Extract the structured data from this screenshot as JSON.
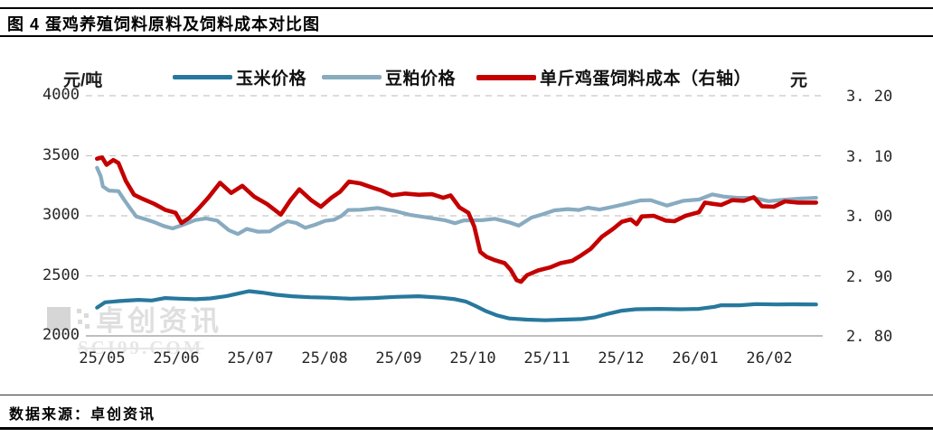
{
  "page": {
    "title": "图 4 蛋鸡养殖饲料原料及饲料成本对比图",
    "footer": "数据来源：卓创资讯",
    "watermark": {
      "name": "卓创资讯",
      "site": "SCI99.COM"
    }
  },
  "chart_data": {
    "type": "line",
    "title": "图 4 蛋鸡养殖饲料原料及饲料成本对比图",
    "grid": "dashed-horizontal",
    "legend_position": "top",
    "left_axis": {
      "label": "元/吨",
      "ticks": [
        "4000",
        "3500",
        "3000",
        "2500",
        "2000"
      ],
      "range": [
        2000,
        4000
      ]
    },
    "right_axis": {
      "label": "元",
      "ticks": [
        "3. 20",
        "3. 10",
        "3. 00",
        "2. 90",
        "2. 80"
      ],
      "range": [
        2.8,
        3.2
      ]
    },
    "x_axis": {
      "ticks": [
        "25/05",
        "25/06",
        "25/07",
        "25/08",
        "25/09",
        "25/10",
        "25/11",
        "25/12",
        "26/01",
        "26/02"
      ],
      "unit": "months, x value 0 = tick 25/05"
    },
    "colors": {
      "corn": "#27789d",
      "soybean_meal": "#88abc0",
      "feed_cost": "#c40000",
      "gridline": "#c6c6c6"
    },
    "series": [
      {
        "name": "玉米价格",
        "axis": "left",
        "color": "#27789d",
        "x": [
          -0.07,
          0.04,
          0.24,
          0.49,
          0.67,
          0.85,
          1.04,
          1.26,
          1.46,
          1.67,
          1.83,
          1.98,
          2.16,
          2.35,
          2.56,
          2.8,
          3.05,
          3.35,
          3.66,
          3.96,
          4.27,
          4.57,
          4.76,
          4.91,
          5.04,
          5.18,
          5.33,
          5.49,
          5.73,
          5.98,
          6.22,
          6.46,
          6.65,
          6.83,
          7.01,
          7.2,
          7.5,
          7.8,
          8.05,
          8.26,
          8.35,
          8.6,
          8.82,
          9.09,
          9.33,
          9.63
        ],
        "values": [
          2235,
          2280,
          2290,
          2300,
          2295,
          2315,
          2310,
          2305,
          2312,
          2330,
          2352,
          2372,
          2360,
          2342,
          2330,
          2322,
          2318,
          2310,
          2315,
          2325,
          2330,
          2318,
          2305,
          2285,
          2248,
          2205,
          2170,
          2145,
          2135,
          2130,
          2135,
          2140,
          2155,
          2185,
          2210,
          2222,
          2225,
          2222,
          2225,
          2242,
          2255,
          2255,
          2265,
          2262,
          2263,
          2262
        ]
      },
      {
        "name": "豆粕价格",
        "axis": "left",
        "color": "#88abc0",
        "x": [
          -0.07,
          -0.02,
          0.01,
          0.09,
          0.22,
          0.3,
          0.38,
          0.46,
          0.59,
          0.71,
          0.83,
          0.95,
          1.07,
          1.26,
          1.4,
          1.55,
          1.71,
          1.83,
          1.95,
          2.1,
          2.26,
          2.38,
          2.5,
          2.62,
          2.74,
          2.87,
          3.01,
          3.13,
          3.23,
          3.32,
          3.48,
          3.72,
          3.93,
          4.15,
          4.43,
          4.63,
          4.76,
          4.88,
          5.12,
          5.3,
          5.49,
          5.62,
          5.79,
          5.94,
          6.1,
          6.28,
          6.43,
          6.55,
          6.71,
          6.89,
          7.07,
          7.26,
          7.4,
          7.62,
          7.84,
          8.05,
          8.23,
          8.38,
          8.57,
          8.78,
          8.99,
          9.18,
          9.39,
          9.63
        ],
        "values": [
          3400,
          3330,
          3245,
          3210,
          3205,
          3130,
          3060,
          2995,
          2970,
          2945,
          2915,
          2895,
          2920,
          2965,
          2978,
          2960,
          2880,
          2848,
          2890,
          2868,
          2870,
          2915,
          2955,
          2940,
          2900,
          2925,
          2958,
          2968,
          3000,
          3048,
          3050,
          3065,
          3042,
          3008,
          2982,
          2962,
          2938,
          2962,
          2963,
          2975,
          2945,
          2918,
          2985,
          3012,
          3045,
          3056,
          3048,
          3068,
          3052,
          3075,
          3100,
          3128,
          3130,
          3085,
          3125,
          3135,
          3178,
          3160,
          3150,
          3150,
          3122,
          3132,
          3142,
          3150
        ]
      },
      {
        "name": "单斤鸡蛋饲料成本（右轴）",
        "axis": "right",
        "color": "#c40000",
        "x": [
          -0.07,
          0.0,
          0.06,
          0.15,
          0.22,
          0.32,
          0.43,
          0.55,
          0.7,
          0.85,
          0.99,
          1.07,
          1.18,
          1.3,
          1.43,
          1.59,
          1.74,
          1.89,
          2.05,
          2.22,
          2.41,
          2.54,
          2.66,
          2.82,
          2.95,
          3.09,
          3.21,
          3.33,
          3.48,
          3.62,
          3.77,
          3.91,
          4.09,
          4.27,
          4.45,
          4.6,
          4.7,
          4.82,
          4.94,
          5.02,
          5.1,
          5.18,
          5.3,
          5.43,
          5.51,
          5.59,
          5.65,
          5.73,
          5.88,
          6.04,
          6.18,
          6.34,
          6.46,
          6.59,
          6.74,
          6.89,
          7.01,
          7.13,
          7.21,
          7.28,
          7.44,
          7.6,
          7.72,
          7.87,
          8.05,
          8.13,
          8.23,
          8.35,
          8.5,
          8.66,
          8.79,
          8.9,
          9.06,
          9.21,
          9.39,
          9.63
        ],
        "values": [
          3.095,
          3.097,
          3.085,
          3.093,
          3.088,
          3.058,
          3.035,
          3.028,
          3.02,
          3.01,
          3.005,
          2.988,
          2.997,
          3.012,
          3.03,
          3.055,
          3.038,
          3.05,
          3.032,
          3.02,
          3.002,
          3.026,
          3.044,
          3.026,
          3.015,
          3.03,
          3.04,
          3.057,
          3.054,
          3.048,
          3.042,
          3.034,
          3.037,
          3.035,
          3.036,
          3.03,
          3.034,
          3.014,
          3.005,
          2.982,
          2.94,
          2.932,
          2.926,
          2.921,
          2.91,
          2.893,
          2.89,
          2.901,
          2.909,
          2.914,
          2.921,
          2.925,
          2.934,
          2.945,
          2.965,
          2.978,
          2.99,
          2.994,
          2.986,
          2.999,
          3.0,
          2.992,
          2.991,
          3.0,
          3.006,
          3.022,
          3.02,
          3.018,
          3.026,
          3.025,
          3.031,
          3.016,
          3.015,
          3.024,
          3.022,
          3.022
        ]
      }
    ]
  }
}
